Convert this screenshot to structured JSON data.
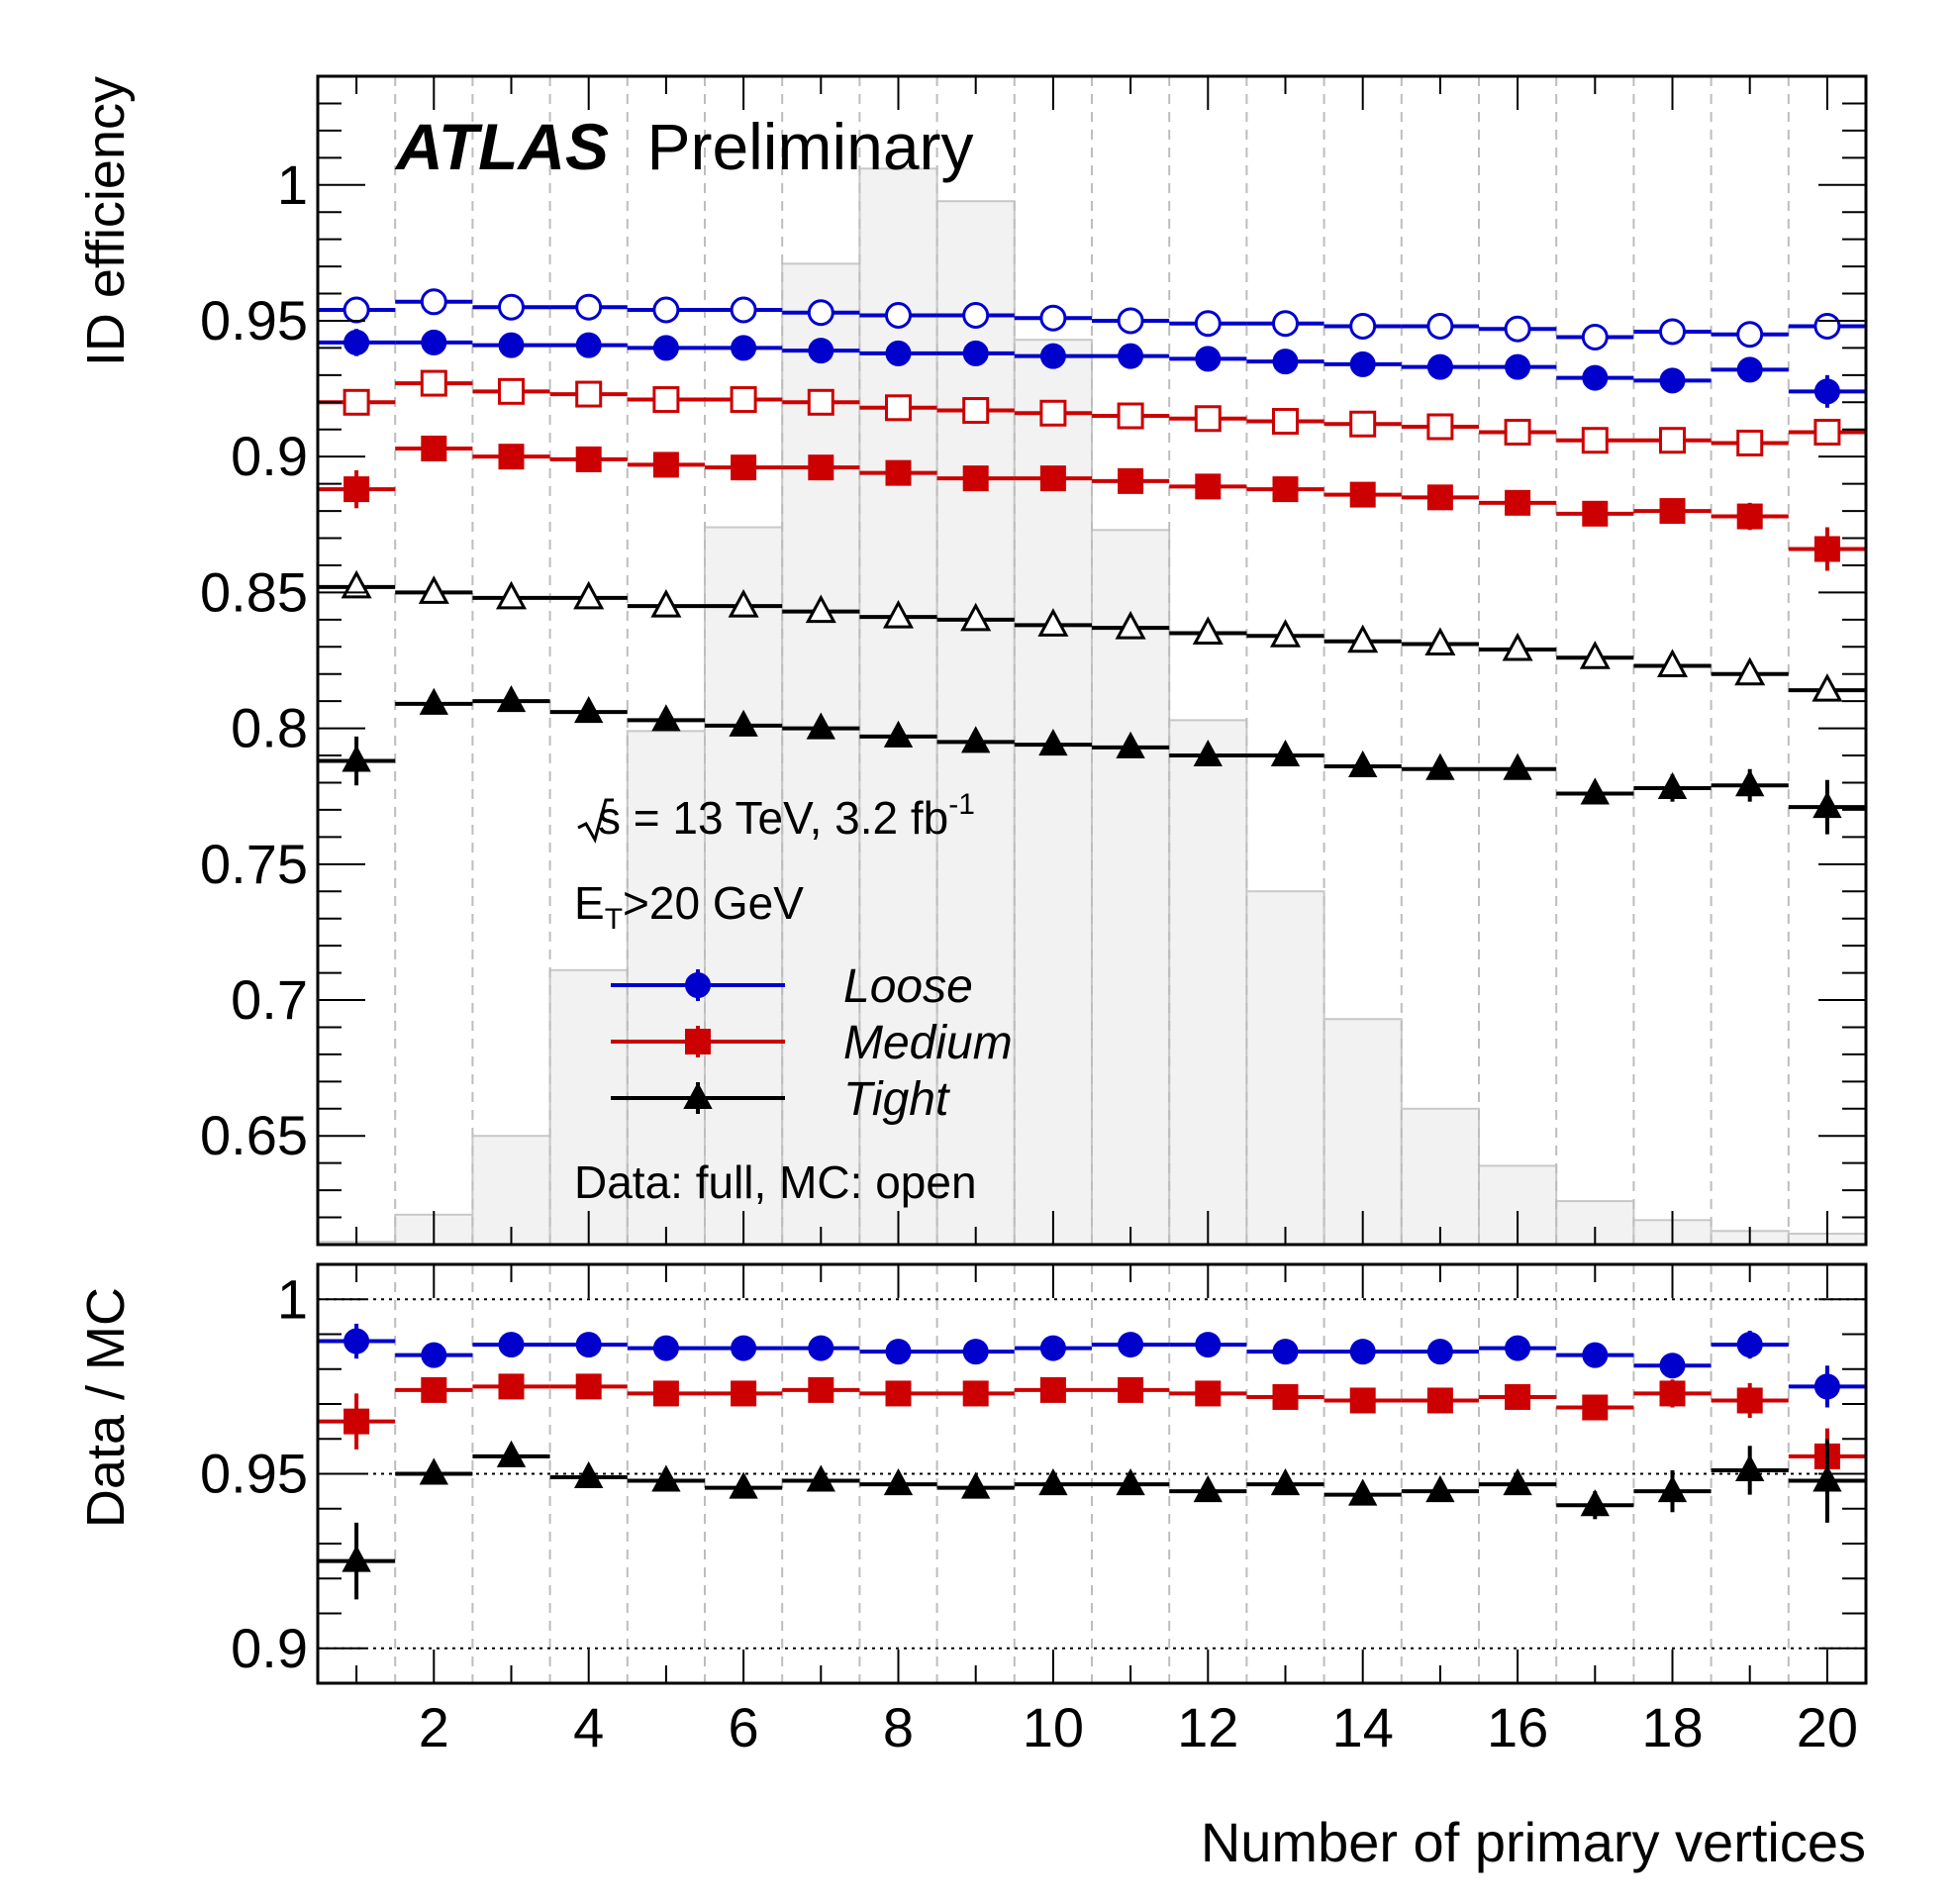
{
  "chart_data": [
    {
      "type": "scatter",
      "panel": "efficiency",
      "title": "",
      "xlabel": "Number of primary vertices",
      "ylabel": "ID efficiency",
      "xlim": [
        0.5,
        20.5
      ],
      "ylim": [
        0.61,
        1.04
      ],
      "x_ticks": [
        "2",
        "4",
        "6",
        "8",
        "10",
        "12",
        "14",
        "16",
        "18",
        "20"
      ],
      "y_ticks": [
        "0.65",
        "0.7",
        "0.75",
        "0.8",
        "0.85",
        "0.9",
        "0.95",
        "1"
      ],
      "grid": "vertical dashed",
      "annotations": {
        "experiment": "ATLAS",
        "status": "Preliminary",
        "energy_prefix": "s = 13 TeV, 3.2 fb",
        "energy_sup": "-1",
        "et_prefix": "E",
        "et_sub": "T",
        "et_suffix": ">20 GeV",
        "data_mc": "Data: full, MC: open"
      },
      "legend": {
        "placement": "center-left",
        "entries": [
          "Loose",
          "Medium",
          "Tight"
        ]
      },
      "x": [
        1,
        2,
        3,
        4,
        5,
        6,
        7,
        8,
        9,
        10,
        11,
        12,
        13,
        14,
        15,
        16,
        17,
        18,
        19,
        20
      ],
      "histogram_background": [
        0.611,
        0.621,
        0.65,
        0.711,
        0.799,
        0.874,
        0.971,
        1.006,
        0.994,
        0.943,
        0.873,
        0.803,
        0.74,
        0.693,
        0.66,
        0.639,
        0.626,
        0.619,
        0.615,
        0.614
      ],
      "series": [
        {
          "name": "Loose",
          "kind": "data",
          "color": "#0000cc",
          "marker": "circle-filled",
          "values": [
            0.942,
            0.942,
            0.941,
            0.941,
            0.94,
            0.94,
            0.939,
            0.938,
            0.938,
            0.937,
            0.937,
            0.936,
            0.935,
            0.934,
            0.933,
            0.933,
            0.929,
            0.928,
            0.932,
            0.924
          ],
          "errors": [
            0.005,
            0.002,
            0.002,
            0.002,
            0.001,
            0.001,
            0.001,
            0.001,
            0.001,
            0.001,
            0.001,
            0.001,
            0.001,
            0.001,
            0.001,
            0.002,
            0.002,
            0.003,
            0.004,
            0.006
          ]
        },
        {
          "name": "Loose MC",
          "kind": "mc",
          "color": "#0000cc",
          "marker": "circle-open",
          "values": [
            0.954,
            0.957,
            0.955,
            0.955,
            0.954,
            0.954,
            0.953,
            0.952,
            0.952,
            0.951,
            0.95,
            0.949,
            0.949,
            0.948,
            0.948,
            0.947,
            0.944,
            0.946,
            0.945,
            0.948
          ],
          "errors": [
            0.001,
            0.001,
            0.001,
            0.001,
            0.001,
            0.001,
            0.001,
            0.001,
            0.001,
            0.001,
            0.001,
            0.001,
            0.001,
            0.001,
            0.001,
            0.001,
            0.001,
            0.001,
            0.001,
            0.001
          ]
        },
        {
          "name": "Medium",
          "kind": "data",
          "color": "#cc0000",
          "marker": "square-filled",
          "values": [
            0.888,
            0.903,
            0.9,
            0.899,
            0.897,
            0.896,
            0.896,
            0.894,
            0.892,
            0.892,
            0.891,
            0.889,
            0.888,
            0.886,
            0.885,
            0.883,
            0.879,
            0.88,
            0.878,
            0.866
          ],
          "errors": [
            0.007,
            0.002,
            0.002,
            0.002,
            0.002,
            0.002,
            0.002,
            0.002,
            0.002,
            0.002,
            0.002,
            0.002,
            0.002,
            0.002,
            0.002,
            0.003,
            0.003,
            0.004,
            0.005,
            0.008
          ]
        },
        {
          "name": "Medium MC",
          "kind": "mc",
          "color": "#cc0000",
          "marker": "square-open",
          "values": [
            0.92,
            0.927,
            0.924,
            0.923,
            0.921,
            0.921,
            0.92,
            0.918,
            0.917,
            0.916,
            0.915,
            0.914,
            0.913,
            0.912,
            0.911,
            0.909,
            0.906,
            0.906,
            0.905,
            0.909
          ],
          "errors": [
            0.001,
            0.001,
            0.001,
            0.001,
            0.001,
            0.001,
            0.001,
            0.001,
            0.001,
            0.001,
            0.001,
            0.001,
            0.001,
            0.001,
            0.001,
            0.001,
            0.001,
            0.001,
            0.001,
            0.001
          ]
        },
        {
          "name": "Tight",
          "kind": "data",
          "color": "#000000",
          "marker": "triangle-filled",
          "values": [
            0.788,
            0.809,
            0.81,
            0.806,
            0.803,
            0.801,
            0.8,
            0.797,
            0.795,
            0.794,
            0.793,
            0.79,
            0.79,
            0.786,
            0.785,
            0.785,
            0.776,
            0.778,
            0.779,
            0.771
          ],
          "errors": [
            0.009,
            0.003,
            0.002,
            0.002,
            0.002,
            0.002,
            0.002,
            0.002,
            0.002,
            0.002,
            0.002,
            0.002,
            0.002,
            0.002,
            0.002,
            0.003,
            0.003,
            0.005,
            0.006,
            0.01
          ]
        },
        {
          "name": "Tight MC",
          "kind": "mc",
          "color": "#000000",
          "marker": "triangle-open",
          "values": [
            0.852,
            0.85,
            0.848,
            0.848,
            0.845,
            0.845,
            0.843,
            0.841,
            0.84,
            0.838,
            0.837,
            0.835,
            0.834,
            0.832,
            0.831,
            0.829,
            0.826,
            0.823,
            0.82,
            0.814
          ],
          "errors": [
            0.001,
            0.001,
            0.001,
            0.001,
            0.001,
            0.001,
            0.001,
            0.001,
            0.001,
            0.001,
            0.001,
            0.001,
            0.001,
            0.001,
            0.001,
            0.001,
            0.001,
            0.001,
            0.001,
            0.001
          ]
        }
      ]
    },
    {
      "type": "scatter",
      "panel": "ratio",
      "title": "",
      "xlabel": "Number of primary vertices",
      "ylabel": "Data / MC",
      "xlim": [
        0.5,
        20.5
      ],
      "ylim": [
        0.89,
        1.01
      ],
      "x_ticks": [
        "2",
        "4",
        "6",
        "8",
        "10",
        "12",
        "14",
        "16",
        "18",
        "20"
      ],
      "y_ticks": [
        "0.9",
        "0.95",
        "1"
      ],
      "reference_lines": [
        0.9,
        0.95,
        1.0
      ],
      "grid": "vertical dashed",
      "x": [
        1,
        2,
        3,
        4,
        5,
        6,
        7,
        8,
        9,
        10,
        11,
        12,
        13,
        14,
        15,
        16,
        17,
        18,
        19,
        20
      ],
      "series": [
        {
          "name": "Loose",
          "color": "#0000cc",
          "marker": "circle-filled",
          "values": [
            0.988,
            0.984,
            0.987,
            0.987,
            0.986,
            0.986,
            0.986,
            0.985,
            0.985,
            0.986,
            0.987,
            0.987,
            0.985,
            0.985,
            0.985,
            0.986,
            0.984,
            0.981,
            0.987,
            0.975
          ],
          "errors": [
            0.005,
            0.002,
            0.001,
            0.001,
            0.001,
            0.001,
            0.001,
            0.001,
            0.001,
            0.001,
            0.001,
            0.001,
            0.001,
            0.001,
            0.001,
            0.002,
            0.002,
            0.003,
            0.004,
            0.006
          ]
        },
        {
          "name": "Medium",
          "color": "#cc0000",
          "marker": "square-filled",
          "values": [
            0.965,
            0.974,
            0.975,
            0.975,
            0.973,
            0.973,
            0.974,
            0.973,
            0.973,
            0.974,
            0.974,
            0.973,
            0.972,
            0.971,
            0.971,
            0.972,
            0.969,
            0.973,
            0.971,
            0.955
          ],
          "errors": [
            0.008,
            0.002,
            0.002,
            0.002,
            0.002,
            0.002,
            0.002,
            0.002,
            0.002,
            0.002,
            0.002,
            0.002,
            0.002,
            0.002,
            0.002,
            0.003,
            0.003,
            0.004,
            0.005,
            0.008
          ]
        },
        {
          "name": "Tight",
          "color": "#000000",
          "marker": "triangle-filled",
          "values": [
            0.925,
            0.95,
            0.955,
            0.949,
            0.948,
            0.946,
            0.948,
            0.947,
            0.946,
            0.947,
            0.947,
            0.945,
            0.947,
            0.944,
            0.945,
            0.947,
            0.941,
            0.945,
            0.951,
            0.948
          ],
          "errors": [
            0.011,
            0.003,
            0.003,
            0.002,
            0.002,
            0.002,
            0.002,
            0.002,
            0.002,
            0.002,
            0.002,
            0.002,
            0.002,
            0.002,
            0.003,
            0.003,
            0.004,
            0.006,
            0.007,
            0.012
          ]
        }
      ]
    }
  ]
}
